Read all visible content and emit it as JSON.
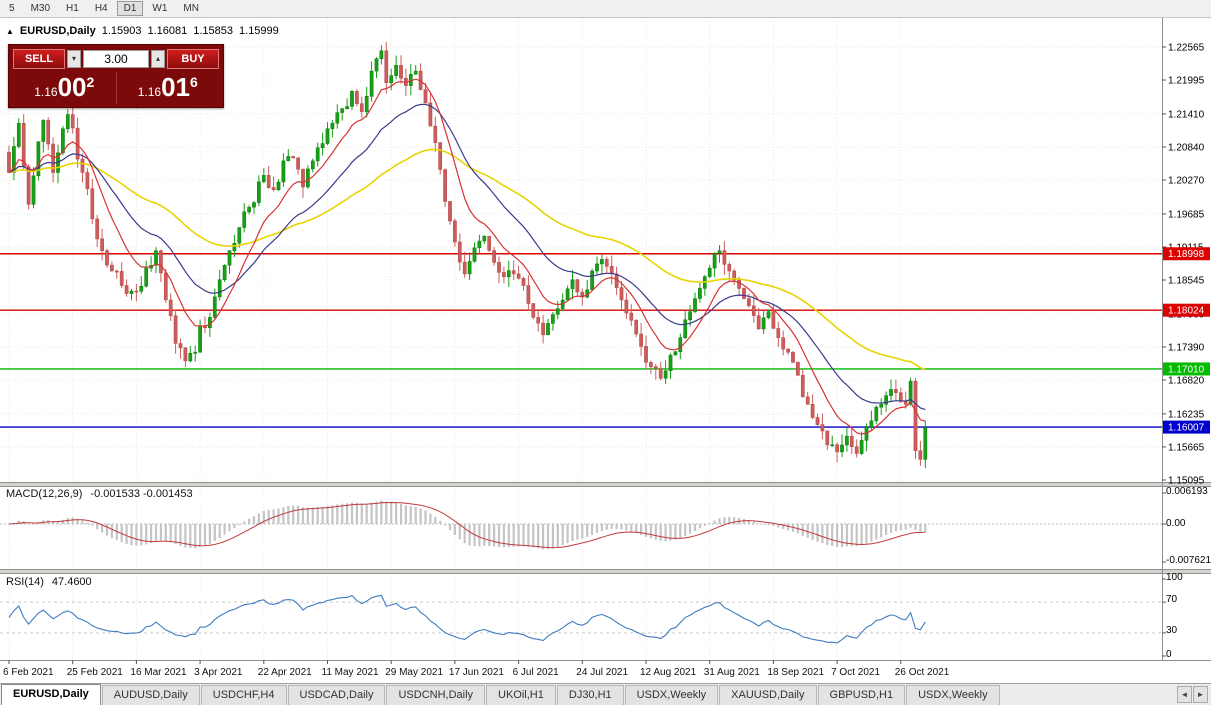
{
  "toolbar": {
    "timeframes": [
      "5",
      "M30",
      "H1",
      "H4",
      "D1",
      "W1",
      "MN"
    ],
    "active": "D1"
  },
  "header": {
    "marker": "▲",
    "symbol": "EURUSD,Daily",
    "open": "1.15903",
    "high": "1.16081",
    "low": "1.15853",
    "close": "1.15999"
  },
  "trade_panel": {
    "sell_label": "SELL",
    "buy_label": "BUY",
    "volume": "3.00",
    "decrease_glyph": "▾",
    "increase_glyph": "▴",
    "sell_price": {
      "prefix": "1.16",
      "big": "00",
      "sup": "2"
    },
    "buy_price": {
      "prefix": "1.16",
      "big": "01",
      "sup": "6"
    }
  },
  "chart_data": {
    "type": "candlestick",
    "symbol": "EURUSD",
    "timeframe": "Daily",
    "price_axis": [
      "1.22565",
      "1.21995",
      "1.21410",
      "1.20840",
      "1.20270",
      "1.19685",
      "1.19115",
      "1.18545",
      "1.17960",
      "1.17390",
      "1.16820",
      "1.16235",
      "1.15665",
      "1.15095"
    ],
    "date_axis": [
      "6 Feb 2021",
      "25 Feb 2021",
      "16 Mar 2021",
      "3 Apr 2021",
      "22 Apr 2021",
      "11 May 2021",
      "29 May 2021",
      "17 Jun 2021",
      "6 Jul 2021",
      "24 Jul 2021",
      "12 Aug 2021",
      "31 Aug 2021",
      "18 Sep 2021",
      "7 Oct 2021",
      "26 Oct 2021"
    ],
    "bar_count": 188,
    "bars_per_label": 13,
    "price_anchors": [
      [
        0,
        1.204
      ],
      [
        2,
        1.2125
      ],
      [
        4,
        1.1985
      ],
      [
        7,
        1.213
      ],
      [
        9,
        1.204
      ],
      [
        12,
        1.214
      ],
      [
        15,
        1.204
      ],
      [
        17,
        1.196
      ],
      [
        19,
        1.1905
      ],
      [
        21,
        1.187
      ],
      [
        23,
        1.1845
      ],
      [
        26,
        1.1835
      ],
      [
        28,
        1.1875
      ],
      [
        30,
        1.1905
      ],
      [
        32,
        1.182
      ],
      [
        34,
        1.1745
      ],
      [
        36,
        1.1715
      ],
      [
        38,
        1.173
      ],
      [
        39,
        1.1775
      ],
      [
        41,
        1.179
      ],
      [
        43,
        1.1855
      ],
      [
        45,
        1.1905
      ],
      [
        47,
        1.1945
      ],
      [
        49,
        1.198
      ],
      [
        52,
        1.2035
      ],
      [
        54,
        1.201
      ],
      [
        56,
        1.206
      ],
      [
        58,
        1.2065
      ],
      [
        60,
        1.2015
      ],
      [
        62,
        1.206
      ],
      [
        64,
        1.209
      ],
      [
        66,
        1.2125
      ],
      [
        68,
        1.215
      ],
      [
        70,
        1.218
      ],
      [
        72,
        1.2145
      ],
      [
        74,
        1.2215
      ],
      [
        76,
        1.225
      ],
      [
        77,
        1.2195
      ],
      [
        79,
        1.2225
      ],
      [
        81,
        1.219
      ],
      [
        83,
        1.2215
      ],
      [
        85,
        1.216
      ],
      [
        86,
        1.212
      ],
      [
        88,
        1.2045
      ],
      [
        89,
        1.199
      ],
      [
        91,
        1.192
      ],
      [
        93,
        1.1865
      ],
      [
        95,
        1.191
      ],
      [
        97,
        1.193
      ],
      [
        99,
        1.1885
      ],
      [
        101,
        1.186
      ],
      [
        103,
        1.1865
      ],
      [
        105,
        1.1845
      ],
      [
        107,
        1.179
      ],
      [
        109,
        1.176
      ],
      [
        111,
        1.1795
      ],
      [
        113,
        1.182
      ],
      [
        115,
        1.1855
      ],
      [
        117,
        1.1825
      ],
      [
        119,
        1.187
      ],
      [
        121,
        1.189
      ],
      [
        123,
        1.1865
      ],
      [
        125,
        1.182
      ],
      [
        127,
        1.1785
      ],
      [
        129,
        1.174
      ],
      [
        131,
        1.1705
      ],
      [
        133,
        1.1685
      ],
      [
        135,
        1.1725
      ],
      [
        137,
        1.1755
      ],
      [
        139,
        1.18
      ],
      [
        141,
        1.184
      ],
      [
        143,
        1.1875
      ],
      [
        145,
        1.1905
      ],
      [
        147,
        1.187
      ],
      [
        149,
        1.184
      ],
      [
        151,
        1.181
      ],
      [
        153,
        1.177
      ],
      [
        155,
        1.18
      ],
      [
        157,
        1.1755
      ],
      [
        159,
        1.173
      ],
      [
        161,
        1.169
      ],
      [
        163,
        1.164
      ],
      [
        165,
        1.1605
      ],
      [
        167,
        1.157
      ],
      [
        169,
        1.1558
      ],
      [
        171,
        1.1585
      ],
      [
        173,
        1.1555
      ],
      [
        175,
        1.16
      ],
      [
        177,
        1.1635
      ],
      [
        179,
        1.1655
      ],
      [
        181,
        1.166
      ],
      [
        183,
        1.164
      ],
      [
        184,
        1.168
      ],
      [
        185,
        1.156
      ],
      [
        186,
        1.1545
      ],
      [
        187,
        1.15999
      ]
    ],
    "levels": [
      {
        "price": 1.18998,
        "label": "1.18998",
        "color": "#dd0000"
      },
      {
        "price": 1.18024,
        "label": "1.18024",
        "color": "#dd0000"
      },
      {
        "price": 1.1701,
        "label": "1.17010",
        "color": "#00bb00"
      },
      {
        "price": 1.16007,
        "label": "1.16007",
        "color": "#0000cc"
      }
    ],
    "moving_averages": [
      {
        "name": "fast-ma",
        "color": "#d63333"
      },
      {
        "name": "medium-ma",
        "color": "#3a3a8c"
      },
      {
        "name": "slow-ma",
        "color": "#e8d400"
      }
    ],
    "candle_colors": {
      "up": "#15a015",
      "down": "#cd5c5c"
    },
    "macd": {
      "label": "MACD(12,26,9)",
      "values": "-0.001533 -0.001453",
      "axis": [
        "0.006193",
        "0.00",
        "-0.007621"
      ],
      "fast": 12,
      "slow": 26,
      "signal": 9
    },
    "rsi": {
      "label": "RSI(14)",
      "value": "47.4600",
      "axis": [
        "100",
        "70",
        "30",
        "0"
      ],
      "period": 14,
      "levels": [
        70,
        30
      ]
    }
  },
  "tabs": {
    "items": [
      {
        "label": "EURUSD,Daily",
        "active": true
      },
      {
        "label": "AUDUSD,Daily",
        "active": false
      },
      {
        "label": "USDCHF,H4",
        "active": false
      },
      {
        "label": "USDCAD,Daily",
        "active": false
      },
      {
        "label": "USDCNH,Daily",
        "active": false
      },
      {
        "label": "UKOil,H1",
        "active": false
      },
      {
        "label": "DJ30,H1",
        "active": false
      },
      {
        "label": "USDX,Weekly",
        "active": false
      },
      {
        "label": "XAUUSD,Daily",
        "active": false
      },
      {
        "label": "GBPUSD,H1",
        "active": false
      },
      {
        "label": "USDX,Weekly",
        "active": false
      }
    ],
    "scroll_left": "◄",
    "scroll_right": "►"
  }
}
